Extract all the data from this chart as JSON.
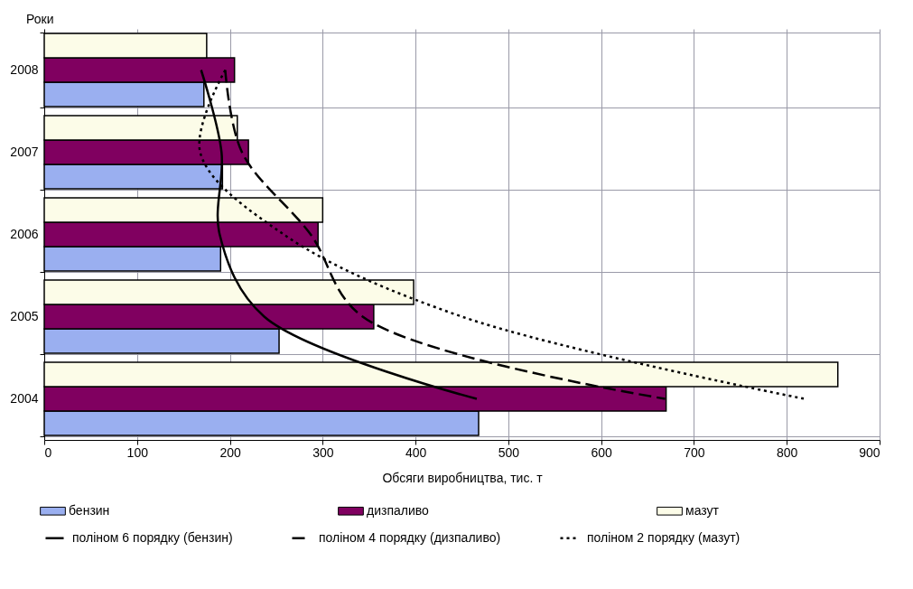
{
  "chart_data": {
    "type": "bar",
    "orientation": "horizontal",
    "xlabel": "Обсяги виробництва, тис. т",
    "ylabel": "Роки",
    "categories": [
      "2008",
      "2007",
      "2006",
      "2005",
      "2004"
    ],
    "series": [
      {
        "name": "бензин",
        "color": "#9aaff0",
        "values": [
          172,
          192,
          190,
          253,
          468
        ]
      },
      {
        "name": "дизпаливо",
        "color": "#800060",
        "values": [
          205,
          220,
          295,
          355,
          670
        ]
      },
      {
        "name": "мазут",
        "color": "#fcfce8",
        "values": [
          175,
          208,
          300,
          398,
          855
        ]
      },
      {
        "name": "поліном 6 порядку (бензин)",
        "type": "line",
        "line_style": "solid",
        "color": "#000000",
        "values": [
          169,
          191,
          189,
          237,
          466
        ]
      },
      {
        "name": "поліном 4 порядку (дизпаливо)",
        "type": "line",
        "line_style": "dashed",
        "color": "#000000",
        "values": [
          195,
          213,
          287,
          343,
          669
        ]
      },
      {
        "name": "поліном 2 порядку (мазут)",
        "type": "line",
        "line_style": "dotted",
        "color": "#000000",
        "values": [
          195,
          168,
          258,
          450,
          819
        ]
      }
    ],
    "xlim": [
      0,
      900
    ],
    "xticks": [
      0,
      100,
      200,
      300,
      400,
      500,
      600,
      700,
      800,
      900
    ],
    "grid": true,
    "legend": "bottom"
  }
}
